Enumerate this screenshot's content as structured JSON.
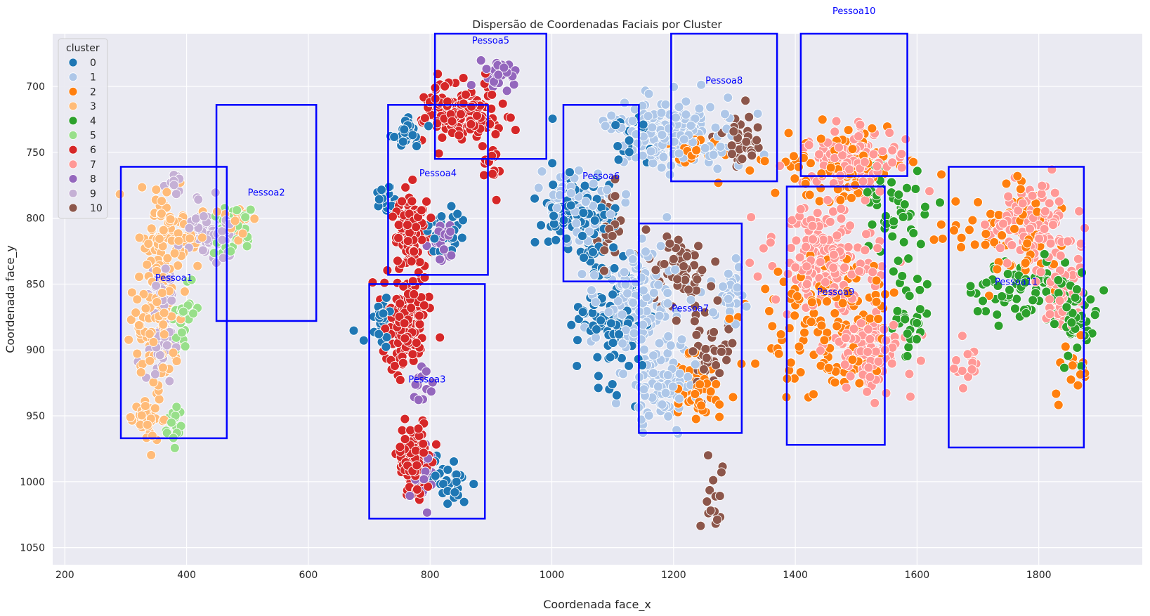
{
  "chart_data": {
    "type": "scatter",
    "title": "Dispersão de Coordenadas Faciais por Cluster",
    "xlabel": "Coordenada face_x",
    "ylabel": "Coordenada face_y",
    "xlim": [
      180,
      1970
    ],
    "ylim": [
      1063,
      660
    ],
    "y_inverted": true,
    "grid": true,
    "x_ticks": [
      200,
      400,
      600,
      800,
      1000,
      1200,
      1400,
      1600,
      1800
    ],
    "y_ticks": [
      700,
      750,
      800,
      850,
      900,
      950,
      1000,
      1050
    ],
    "legend": {
      "title": "cluster",
      "placement": "upper-left",
      "entries": [
        "0",
        "1",
        "2",
        "3",
        "4",
        "5",
        "6",
        "7",
        "8",
        "9",
        "10"
      ]
    },
    "series": [
      {
        "name": "0",
        "color": "#1f77b4",
        "blobs": [
          {
            "cx": 760,
            "cy": 735,
            "rx": 30,
            "ry": 15,
            "n": 30
          },
          {
            "cx": 730,
            "cy": 785,
            "rx": 25,
            "ry": 12,
            "n": 20
          },
          {
            "cx": 830,
            "cy": 810,
            "rx": 40,
            "ry": 25,
            "n": 25
          },
          {
            "cx": 720,
            "cy": 880,
            "rx": 25,
            "ry": 25,
            "n": 30
          },
          {
            "cx": 830,
            "cy": 1000,
            "rx": 40,
            "ry": 25,
            "n": 30
          },
          {
            "cx": 1050,
            "cy": 800,
            "rx": 70,
            "ry": 40,
            "n": 110
          },
          {
            "cx": 1100,
            "cy": 880,
            "rx": 60,
            "ry": 60,
            "n": 90
          },
          {
            "cx": 1130,
            "cy": 740,
            "rx": 30,
            "ry": 20,
            "n": 20
          }
        ]
      },
      {
        "name": "1",
        "color": "#aec7e8",
        "blobs": [
          {
            "cx": 1200,
            "cy": 735,
            "rx": 110,
            "ry": 28,
            "n": 190
          },
          {
            "cx": 1040,
            "cy": 790,
            "rx": 60,
            "ry": 30,
            "n": 70
          },
          {
            "cx": 1140,
            "cy": 860,
            "rx": 80,
            "ry": 45,
            "n": 130
          },
          {
            "cx": 1180,
            "cy": 925,
            "rx": 65,
            "ry": 35,
            "n": 100
          },
          {
            "cx": 1290,
            "cy": 860,
            "rx": 30,
            "ry": 25,
            "n": 30
          }
        ]
      },
      {
        "name": "2",
        "color": "#ff7f0e",
        "blobs": [
          {
            "cx": 1240,
            "cy": 750,
            "rx": 45,
            "ry": 15,
            "n": 25
          },
          {
            "cx": 1480,
            "cy": 760,
            "rx": 110,
            "ry": 35,
            "n": 90
          },
          {
            "cx": 1460,
            "cy": 880,
            "rx": 140,
            "ry": 60,
            "n": 140
          },
          {
            "cx": 1750,
            "cy": 815,
            "rx": 120,
            "ry": 45,
            "n": 70
          },
          {
            "cx": 1240,
            "cy": 930,
            "rx": 40,
            "ry": 30,
            "n": 50
          },
          {
            "cx": 1860,
            "cy": 920,
            "rx": 30,
            "ry": 30,
            "n": 15
          }
        ]
      },
      {
        "name": "3",
        "color": "#ffbb78",
        "blobs": [
          {
            "cx": 370,
            "cy": 815,
            "rx": 55,
            "ry": 35,
            "n": 90
          },
          {
            "cx": 350,
            "cy": 880,
            "rx": 45,
            "ry": 45,
            "n": 110
          },
          {
            "cx": 335,
            "cy": 950,
            "rx": 25,
            "ry": 25,
            "n": 40
          },
          {
            "cx": 490,
            "cy": 805,
            "rx": 30,
            "ry": 12,
            "n": 20
          }
        ]
      },
      {
        "name": "4",
        "color": "#2ca02c",
        "blobs": [
          {
            "cx": 1560,
            "cy": 790,
            "rx": 60,
            "ry": 50,
            "n": 50
          },
          {
            "cx": 1590,
            "cy": 880,
            "rx": 40,
            "ry": 40,
            "n": 30
          },
          {
            "cx": 1780,
            "cy": 855,
            "rx": 110,
            "ry": 25,
            "n": 80
          },
          {
            "cx": 1860,
            "cy": 880,
            "rx": 35,
            "ry": 30,
            "n": 40
          }
        ]
      },
      {
        "name": "5",
        "color": "#98df8a",
        "blobs": [
          {
            "cx": 395,
            "cy": 880,
            "rx": 20,
            "ry": 30,
            "n": 25
          },
          {
            "cx": 470,
            "cy": 810,
            "rx": 45,
            "ry": 25,
            "n": 30
          },
          {
            "cx": 380,
            "cy": 955,
            "rx": 15,
            "ry": 15,
            "n": 15
          }
        ]
      },
      {
        "name": "6",
        "color": "#d62728",
        "blobs": [
          {
            "cx": 850,
            "cy": 720,
            "rx": 70,
            "ry": 25,
            "n": 160
          },
          {
            "cx": 770,
            "cy": 810,
            "rx": 30,
            "ry": 30,
            "n": 90
          },
          {
            "cx": 760,
            "cy": 880,
            "rx": 45,
            "ry": 40,
            "n": 140
          },
          {
            "cx": 775,
            "cy": 985,
            "rx": 30,
            "ry": 35,
            "n": 100
          },
          {
            "cx": 900,
            "cy": 760,
            "rx": 15,
            "ry": 20,
            "n": 15
          }
        ]
      },
      {
        "name": "7",
        "color": "#ff9896",
        "blobs": [
          {
            "cx": 1490,
            "cy": 755,
            "rx": 80,
            "ry": 25,
            "n": 150
          },
          {
            "cx": 1450,
            "cy": 830,
            "rx": 90,
            "ry": 40,
            "n": 180
          },
          {
            "cx": 1520,
            "cy": 900,
            "rx": 80,
            "ry": 35,
            "n": 110
          },
          {
            "cx": 1790,
            "cy": 805,
            "rx": 80,
            "ry": 30,
            "n": 110
          },
          {
            "cx": 1840,
            "cy": 860,
            "rx": 40,
            "ry": 25,
            "n": 45
          },
          {
            "cx": 1680,
            "cy": 910,
            "rx": 25,
            "ry": 25,
            "n": 15
          }
        ]
      },
      {
        "name": "8",
        "color": "#9467bd",
        "blobs": [
          {
            "cx": 915,
            "cy": 690,
            "rx": 35,
            "ry": 12,
            "n": 30
          },
          {
            "cx": 820,
            "cy": 815,
            "rx": 25,
            "ry": 18,
            "n": 25
          },
          {
            "cx": 790,
            "cy": 925,
            "rx": 25,
            "ry": 15,
            "n": 15
          },
          {
            "cx": 790,
            "cy": 990,
            "rx": 30,
            "ry": 25,
            "n": 20
          }
        ]
      },
      {
        "name": "9",
        "color": "#c5b0d5",
        "blobs": [
          {
            "cx": 440,
            "cy": 810,
            "rx": 45,
            "ry": 25,
            "n": 60
          },
          {
            "cx": 365,
            "cy": 850,
            "rx": 25,
            "ry": 15,
            "n": 35
          },
          {
            "cx": 360,
            "cy": 895,
            "rx": 30,
            "ry": 25,
            "n": 40
          },
          {
            "cx": 380,
            "cy": 775,
            "rx": 15,
            "ry": 10,
            "n": 10
          }
        ]
      },
      {
        "name": "10",
        "color": "#8c564b",
        "blobs": [
          {
            "cx": 1310,
            "cy": 740,
            "rx": 45,
            "ry": 25,
            "n": 35
          },
          {
            "cx": 1210,
            "cy": 840,
            "rx": 50,
            "ry": 30,
            "n": 60
          },
          {
            "cx": 1260,
            "cy": 900,
            "rx": 35,
            "ry": 30,
            "n": 40
          },
          {
            "cx": 1265,
            "cy": 1015,
            "rx": 20,
            "ry": 35,
            "n": 15
          },
          {
            "cx": 1090,
            "cy": 810,
            "rx": 30,
            "ry": 25,
            "n": 25
          }
        ]
      }
    ],
    "annotations": [
      {
        "label": "Pessoa1",
        "x0": 292,
        "x1": 466,
        "y0": 761,
        "y1": 967
      },
      {
        "label": "Pessoa2",
        "x0": 449,
        "x1": 613,
        "y0": 714,
        "y1": 878
      },
      {
        "label": "Pessoa3",
        "x0": 700,
        "x1": 890,
        "y0": 850,
        "y1": 1028
      },
      {
        "label": "Pessoa4",
        "x0": 731,
        "x1": 895,
        "y0": 714,
        "y1": 843
      },
      {
        "label": "Pessoa5",
        "x0": 808,
        "x1": 991,
        "y0": 660,
        "y1": 755
      },
      {
        "label": "Pessoa6",
        "x0": 1019,
        "x1": 1143,
        "y0": 714,
        "y1": 848
      },
      {
        "label": "Pessoa7",
        "x0": 1143,
        "x1": 1312,
        "y0": 804,
        "y1": 963
      },
      {
        "label": "Pessoa8",
        "x0": 1196,
        "x1": 1370,
        "y0": 660,
        "y1": 772
      },
      {
        "label": "Pessoa9",
        "x0": 1386,
        "x1": 1547,
        "y0": 776,
        "y1": 972
      },
      {
        "label": "Pessoa10",
        "x0": 1409,
        "x1": 1584,
        "y0": 660,
        "y1": 768
      },
      {
        "label": "Pessoa11",
        "x0": 1652,
        "x1": 1874,
        "y0": 761,
        "y1": 974
      }
    ]
  }
}
